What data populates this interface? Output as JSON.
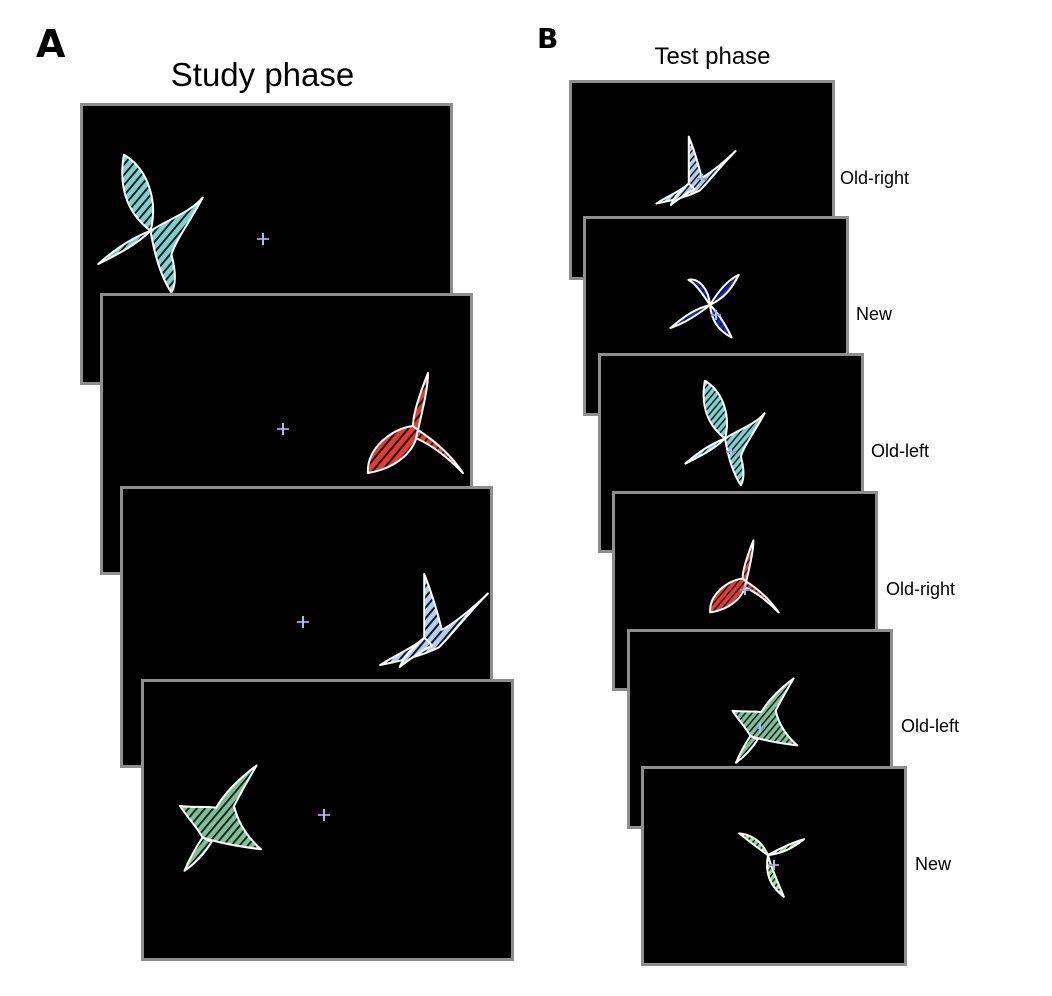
{
  "panels": {
    "a": {
      "letter": "A",
      "title": "Study phase"
    },
    "b": {
      "letter": "B",
      "title": "Test phase"
    }
  },
  "study_trials": [
    {
      "shape": "leaf-bird",
      "color": "#7fcfcf",
      "position": "left"
    },
    {
      "shape": "hummingbird",
      "color": "#e63a2e",
      "position": "right"
    },
    {
      "shape": "boot",
      "color": "#b7cdf0",
      "position": "right"
    },
    {
      "shape": "cross-leaf",
      "color": "#7fbf95",
      "position": "left"
    }
  ],
  "test_trials": [
    {
      "label": "Old-right",
      "shape": "boot",
      "color": "#b7cdf0"
    },
    {
      "label": "New",
      "shape": "star",
      "color": "#1a22c8"
    },
    {
      "label": "Old-left",
      "shape": "leaf-bird",
      "color": "#7fcfcf"
    },
    {
      "label": "Old-right",
      "shape": "hummingbird",
      "color": "#e63a2e"
    },
    {
      "label": "Old-left",
      "shape": "cross-leaf",
      "color": "#7fbf95"
    },
    {
      "label": "New",
      "shape": "ribbon",
      "color": "#8de08d"
    }
  ],
  "fixation_color": "#c07ad8"
}
